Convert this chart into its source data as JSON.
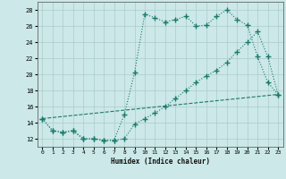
{
  "xlabel": "Humidex (Indice chaleur)",
  "bg_color": "#cce8e8",
  "grid_color": "#aacccc",
  "line_color": "#1a7a6a",
  "xlim": [
    -0.5,
    23.5
  ],
  "ylim": [
    11,
    29
  ],
  "yticks": [
    12,
    14,
    16,
    18,
    20,
    22,
    24,
    26,
    28
  ],
  "xticks": [
    0,
    1,
    2,
    3,
    4,
    5,
    6,
    7,
    8,
    9,
    10,
    11,
    12,
    13,
    14,
    15,
    16,
    17,
    18,
    19,
    20,
    21,
    22,
    23
  ],
  "line1_x": [
    0,
    1,
    2,
    3,
    4,
    5,
    6,
    7,
    8,
    9,
    10,
    11,
    12,
    13,
    14,
    15,
    16,
    17,
    18,
    19,
    20,
    21,
    22,
    23
  ],
  "line1_y": [
    14.5,
    13.0,
    12.8,
    13.0,
    12.0,
    12.0,
    11.8,
    11.8,
    15.0,
    20.2,
    27.5,
    27.0,
    26.5,
    26.8,
    27.2,
    26.0,
    26.1,
    27.2,
    28.0,
    26.8,
    26.1,
    22.2,
    19.0,
    17.5
  ],
  "line2_x": [
    0,
    1,
    2,
    3,
    4,
    5,
    6,
    7,
    8,
    9,
    10,
    11,
    12,
    13,
    14,
    15,
    16,
    17,
    18,
    19,
    20,
    21,
    22,
    23
  ],
  "line2_y": [
    14.5,
    13.0,
    12.8,
    13.0,
    12.0,
    12.0,
    11.8,
    11.8,
    12.0,
    13.8,
    14.5,
    15.2,
    16.0,
    17.0,
    18.0,
    19.0,
    19.8,
    20.5,
    21.5,
    22.8,
    24.0,
    25.3,
    22.2,
    17.5
  ],
  "line3_x": [
    0,
    23
  ],
  "line3_y": [
    14.5,
    17.5
  ],
  "marker_size": 2.5,
  "linewidth": 0.8
}
